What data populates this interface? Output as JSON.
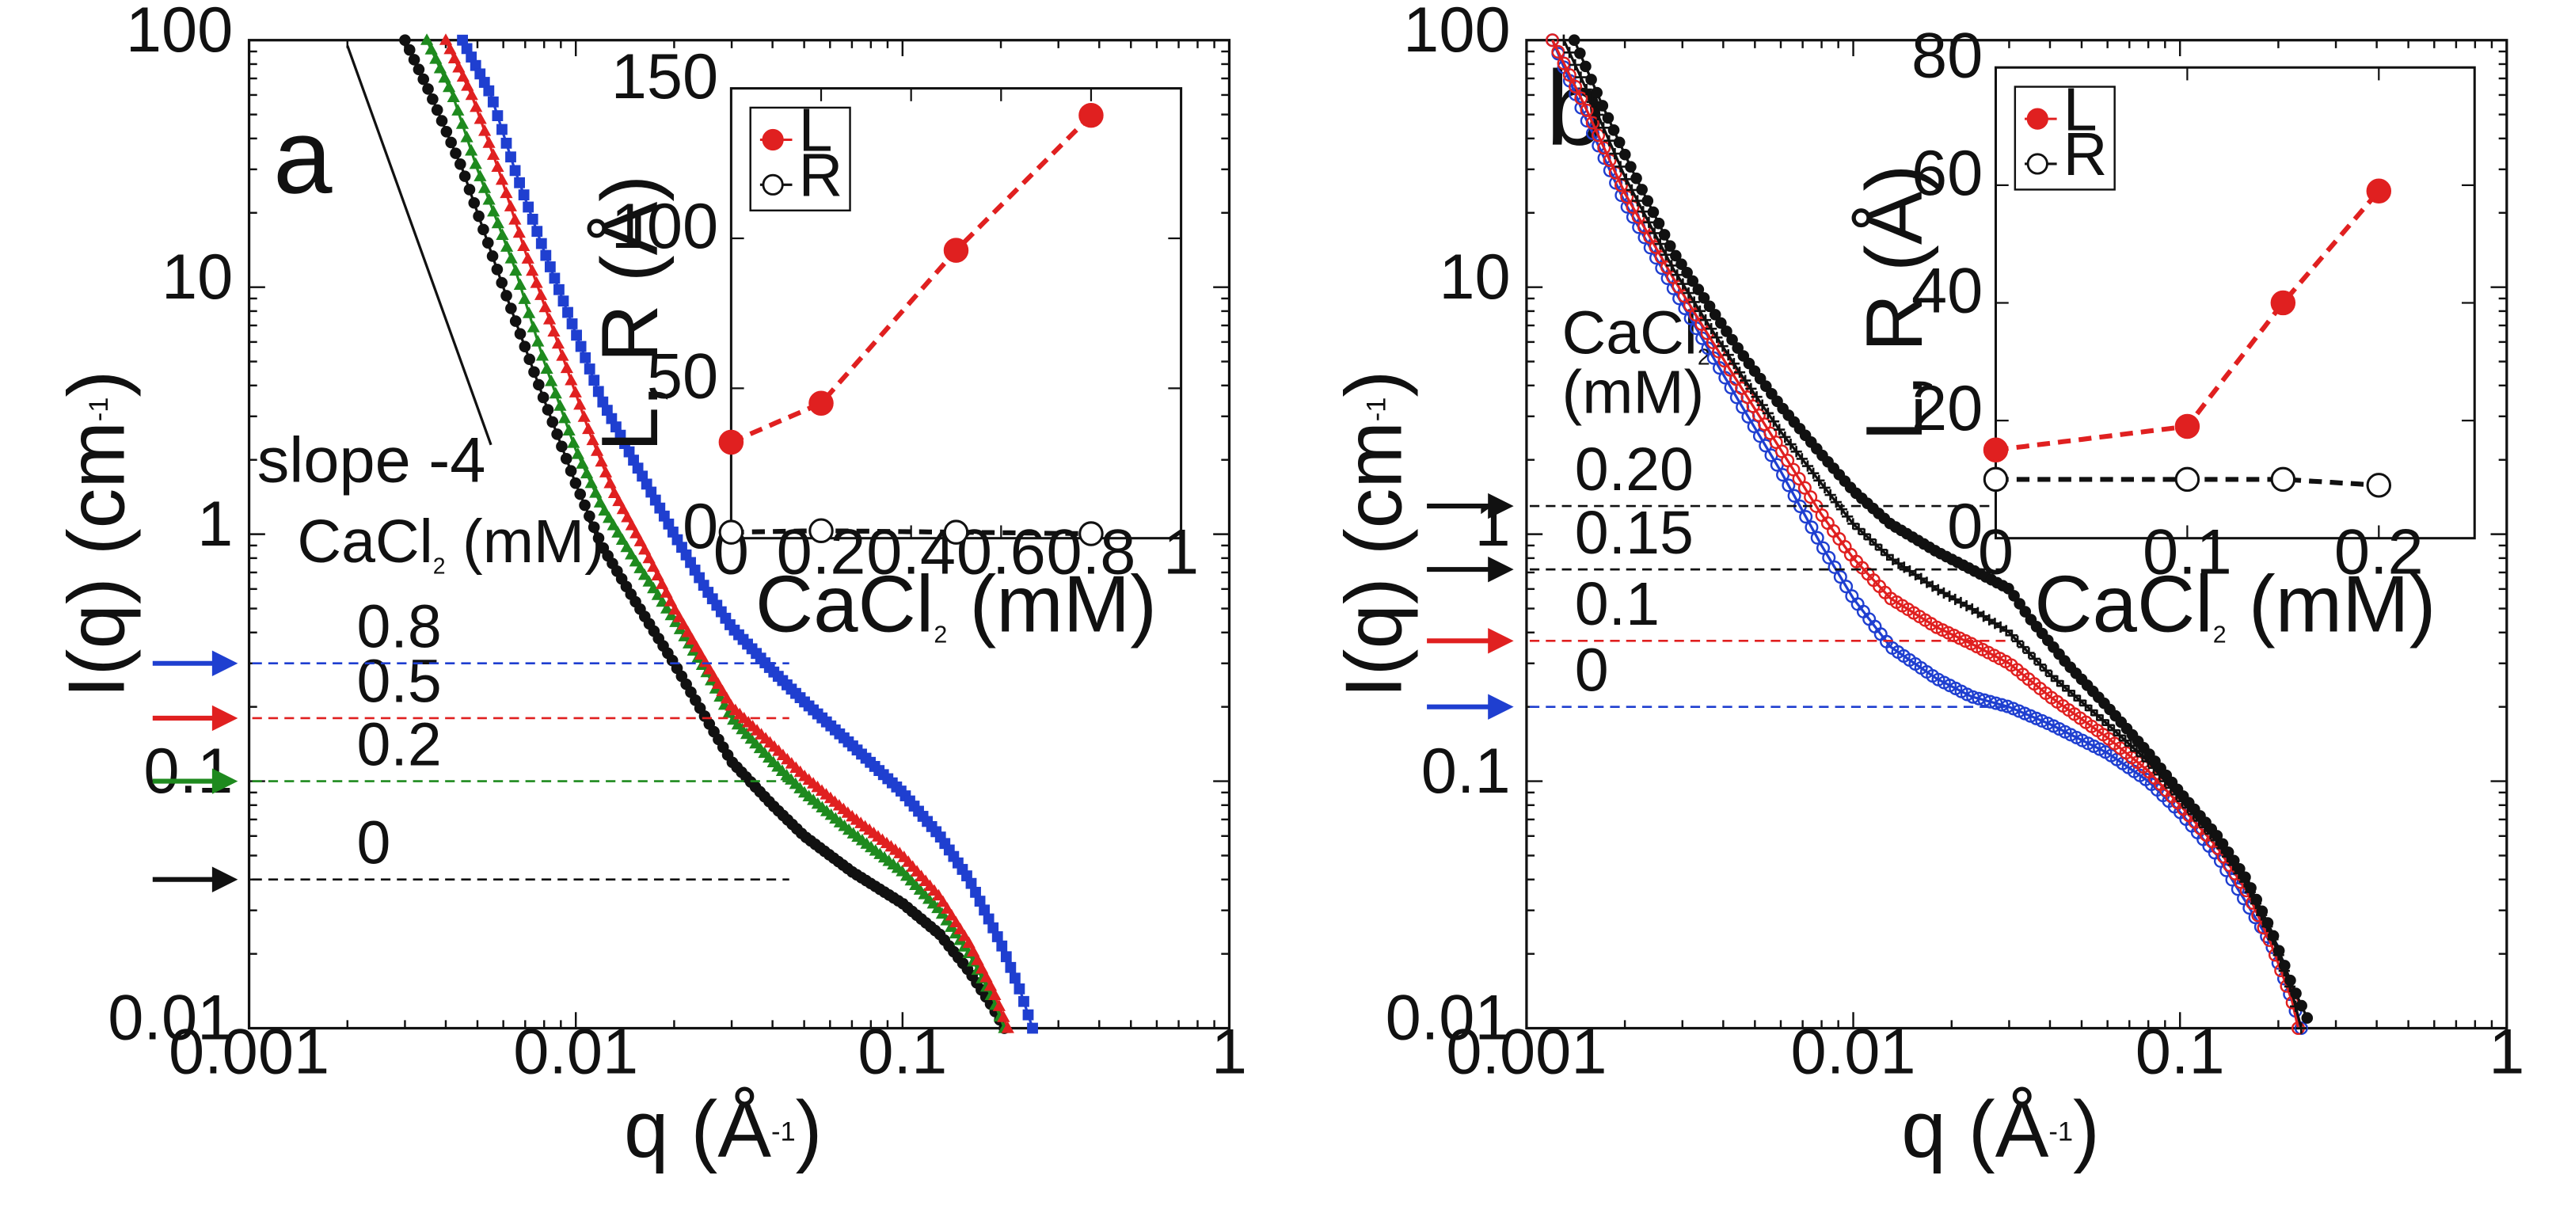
{
  "chart_data": [
    {
      "panel_label": "a",
      "type": "scatter",
      "scale": "log-log",
      "xlabel": "q",
      "xlabel_unit": "(Å",
      "xlabel_sup": "-1",
      "ylabel": "I(q)",
      "ylabel_unit": "(cm",
      "ylabel_sup": "-1",
      "xlim": [
        0.001,
        1
      ],
      "ylim": [
        0.01,
        100
      ],
      "x_ticks": [
        {
          "v": 0.001,
          "label": "0.001"
        },
        {
          "v": 0.01,
          "label": "0.01"
        },
        {
          "v": 0.1,
          "label": "0.1"
        },
        {
          "v": 1,
          "label": "1"
        }
      ],
      "y_ticks": [
        {
          "v": 0.01,
          "label": "0.01"
        },
        {
          "v": 0.1,
          "label": "0.1"
        },
        {
          "v": 1,
          "label": "1"
        },
        {
          "v": 10,
          "label": "10"
        },
        {
          "v": 100,
          "label": "100"
        }
      ],
      "slope_annotation": {
        "text": "slope -4",
        "from": [
          0.002,
          95
        ],
        "to": [
          0.0055,
          2.3
        ]
      },
      "legend_title": "CaCl",
      "legend_title_sub": "2",
      "legend_title_unit": " (mM)",
      "series": [
        {
          "name": "0",
          "color": "#111111",
          "marker": "circle",
          "filled": true,
          "plateau": 0.04,
          "level_label": "0",
          "points": [
            [
              0.003,
              100
            ],
            [
              0.0036,
              60
            ],
            [
              0.0045,
              30
            ],
            [
              0.006,
              10
            ],
            [
              0.008,
              3.5
            ],
            [
              0.01,
              1.6
            ],
            [
              0.012,
              0.9
            ],
            [
              0.015,
              0.55
            ],
            [
              0.02,
              0.3
            ],
            [
              0.025,
              0.18
            ],
            [
              0.03,
              0.12
            ],
            [
              0.04,
              0.08
            ],
            [
              0.05,
              0.06
            ],
            [
              0.07,
              0.043
            ],
            [
              0.1,
              0.032
            ],
            [
              0.13,
              0.024
            ],
            [
              0.16,
              0.017
            ],
            [
              0.19,
              0.012
            ],
            [
              0.205,
              0.01
            ]
          ]
        },
        {
          "name": "0.2",
          "color": "#1e8a1e",
          "marker": "triangle",
          "filled": true,
          "plateau": 0.1,
          "level_label": "0.2",
          "points": [
            [
              0.0035,
              100
            ],
            [
              0.0042,
              60
            ],
            [
              0.005,
              30
            ],
            [
              0.0065,
              12
            ],
            [
              0.008,
              5
            ],
            [
              0.01,
              2.2
            ],
            [
              0.012,
              1.3
            ],
            [
              0.015,
              0.8
            ],
            [
              0.02,
              0.45
            ],
            [
              0.025,
              0.28
            ],
            [
              0.03,
              0.18
            ],
            [
              0.04,
              0.12
            ],
            [
              0.05,
              0.09
            ],
            [
              0.07,
              0.062
            ],
            [
              0.1,
              0.043
            ],
            [
              0.13,
              0.03
            ],
            [
              0.16,
              0.02
            ],
            [
              0.19,
              0.013
            ],
            [
              0.205,
              0.01
            ]
          ]
        },
        {
          "name": "0.5",
          "color": "#e02020",
          "marker": "triangle",
          "filled": true,
          "plateau": 0.18,
          "level_label": "0.5",
          "points": [
            [
              0.004,
              100
            ],
            [
              0.0048,
              60
            ],
            [
              0.0058,
              30
            ],
            [
              0.007,
              14
            ],
            [
              0.009,
              5.5
            ],
            [
              0.011,
              2.6
            ],
            [
              0.013,
              1.5
            ],
            [
              0.016,
              0.9
            ],
            [
              0.02,
              0.5
            ],
            [
              0.025,
              0.3
            ],
            [
              0.03,
              0.2
            ],
            [
              0.04,
              0.14
            ],
            [
              0.05,
              0.105
            ],
            [
              0.07,
              0.072
            ],
            [
              0.1,
              0.05
            ],
            [
              0.13,
              0.034
            ],
            [
              0.16,
              0.022
            ],
            [
              0.19,
              0.014
            ],
            [
              0.21,
              0.01
            ]
          ]
        },
        {
          "name": "0.8",
          "color": "#1f3fd0",
          "marker": "square",
          "filled": true,
          "plateau": 0.3,
          "level_label": "0.8",
          "points": [
            [
              0.0045,
              100
            ],
            [
              0.0055,
              60
            ],
            [
              0.0065,
              30
            ],
            [
              0.008,
              14
            ],
            [
              0.01,
              6.5
            ],
            [
              0.012,
              3.5
            ],
            [
              0.015,
              2
            ],
            [
              0.02,
              1
            ],
            [
              0.025,
              0.6
            ],
            [
              0.03,
              0.42
            ],
            [
              0.04,
              0.28
            ],
            [
              0.05,
              0.21
            ],
            [
              0.07,
              0.14
            ],
            [
              0.1,
              0.09
            ],
            [
              0.13,
              0.06
            ],
            [
              0.16,
              0.04
            ],
            [
              0.2,
              0.022
            ],
            [
              0.23,
              0.014
            ],
            [
              0.25,
              0.01
            ]
          ]
        }
      ],
      "inset": {
        "type": "scatter",
        "xlabel": "CaCl",
        "xlabel_sub": "2",
        "xlabel_unit": " (mM)",
        "ylabel": "L, R (Å)",
        "xlim": [
          0,
          1
        ],
        "ylim": [
          0,
          150
        ],
        "x_ticks": [
          {
            "v": 0,
            "label": "0"
          },
          {
            "v": 0.2,
            "label": "0.2"
          },
          {
            "v": 0.4,
            "label": "0.4"
          },
          {
            "v": 0.6,
            "label": "0.6"
          },
          {
            "v": 0.8,
            "label": "0.8"
          },
          {
            "v": 1,
            "label": "1"
          }
        ],
        "y_ticks": [
          {
            "v": 0,
            "label": "0"
          },
          {
            "v": 50,
            "label": "50"
          },
          {
            "v": 100,
            "label": "100"
          },
          {
            "v": 150,
            "label": "150"
          }
        ],
        "series": [
          {
            "name": "L",
            "color": "#e02020",
            "filled": true,
            "x": [
              0,
              0.2,
              0.5,
              0.8
            ],
            "y": [
              32,
              45,
              96,
              141
            ]
          },
          {
            "name": "R",
            "color": "#111111",
            "filled": false,
            "x": [
              0,
              0.2,
              0.5,
              0.8
            ],
            "y": [
              2,
              2.5,
              2,
              1.5
            ]
          }
        ]
      }
    },
    {
      "panel_label": "b",
      "type": "scatter",
      "scale": "log-log",
      "xlabel": "q",
      "xlabel_unit": "(Å",
      "xlabel_sup": "-1",
      "ylabel": "I(q)",
      "ylabel_unit": "(cm",
      "ylabel_sup": "-1",
      "xlim": [
        0.001,
        1
      ],
      "ylim": [
        0.01,
        100
      ],
      "x_ticks": [
        {
          "v": 0.001,
          "label": "0.001"
        },
        {
          "v": 0.01,
          "label": "0.01"
        },
        {
          "v": 0.1,
          "label": "0.1"
        },
        {
          "v": 1,
          "label": "1"
        }
      ],
      "y_ticks": [
        {
          "v": 0.01,
          "label": "0.01"
        },
        {
          "v": 0.1,
          "label": "0.1"
        },
        {
          "v": 1,
          "label": "1"
        },
        {
          "v": 10,
          "label": "10"
        },
        {
          "v": 100,
          "label": "100"
        }
      ],
      "legend_title": "CaCl",
      "legend_title_sub": "2",
      "legend_title_unit": "(mM)",
      "series": [
        {
          "name": "0",
          "color": "#1f3fd0",
          "marker": "open-circle",
          "filled": false,
          "plateau": 0.2,
          "level_label": "0",
          "points": [
            [
              0.0012,
              100
            ],
            [
              0.0015,
              50
            ],
            [
              0.002,
              22
            ],
            [
              0.0028,
              10
            ],
            [
              0.0035,
              6
            ],
            [
              0.0045,
              3.4
            ],
            [
              0.006,
              1.8
            ],
            [
              0.008,
              0.9
            ],
            [
              0.01,
              0.55
            ],
            [
              0.013,
              0.35
            ],
            [
              0.018,
              0.26
            ],
            [
              0.023,
              0.22
            ],
            [
              0.03,
              0.2
            ],
            [
              0.04,
              0.17
            ],
            [
              0.06,
              0.13
            ],
            [
              0.08,
              0.1
            ],
            [
              0.1,
              0.075
            ],
            [
              0.13,
              0.05
            ],
            [
              0.16,
              0.032
            ],
            [
              0.19,
              0.022
            ],
            [
              0.22,
              0.013
            ],
            [
              0.235,
              0.01
            ]
          ]
        },
        {
          "name": "0.1",
          "color": "#e02020",
          "marker": "open-circle",
          "filled": false,
          "plateau": 0.37,
          "level_label": "0.1",
          "points": [
            [
              0.0012,
              100
            ],
            [
              0.0015,
              55
            ],
            [
              0.002,
              24
            ],
            [
              0.0028,
              11
            ],
            [
              0.0035,
              6.8
            ],
            [
              0.0045,
              4
            ],
            [
              0.006,
              2.2
            ],
            [
              0.008,
              1.2
            ],
            [
              0.01,
              0.8
            ],
            [
              0.013,
              0.55
            ],
            [
              0.018,
              0.42
            ],
            [
              0.023,
              0.36
            ],
            [
              0.03,
              0.3
            ],
            [
              0.04,
              0.22
            ],
            [
              0.06,
              0.15
            ],
            [
              0.08,
              0.11
            ],
            [
              0.1,
              0.08
            ],
            [
              0.13,
              0.054
            ],
            [
              0.16,
              0.036
            ],
            [
              0.19,
              0.022
            ],
            [
              0.22,
              0.013
            ],
            [
              0.23,
              0.01
            ]
          ]
        },
        {
          "name": "0.15",
          "color": "#111111",
          "marker": "cross",
          "filled": false,
          "plateau": 0.72,
          "level_label": "0.15",
          "points": [
            [
              0.0013,
              100
            ],
            [
              0.0016,
              55
            ],
            [
              0.002,
              28
            ],
            [
              0.0028,
              12
            ],
            [
              0.0035,
              7.5
            ],
            [
              0.0045,
              4.5
            ],
            [
              0.006,
              2.6
            ],
            [
              0.008,
              1.6
            ],
            [
              0.01,
              1.1
            ],
            [
              0.013,
              0.8
            ],
            [
              0.018,
              0.6
            ],
            [
              0.023,
              0.5
            ],
            [
              0.03,
              0.4
            ],
            [
              0.04,
              0.27
            ],
            [
              0.06,
              0.17
            ],
            [
              0.08,
              0.12
            ],
            [
              0.1,
              0.085
            ],
            [
              0.13,
              0.057
            ],
            [
              0.16,
              0.038
            ],
            [
              0.19,
              0.024
            ],
            [
              0.22,
              0.014
            ],
            [
              0.235,
              0.01
            ]
          ]
        },
        {
          "name": "0.20",
          "color": "#111111",
          "marker": "circle",
          "filled": true,
          "plateau": 1.3,
          "level_label": "0.20",
          "points": [
            [
              0.0014,
              100
            ],
            [
              0.0017,
              55
            ],
            [
              0.0021,
              30
            ],
            [
              0.0028,
              14
            ],
            [
              0.0035,
              9
            ],
            [
              0.0045,
              5.5
            ],
            [
              0.006,
              3.3
            ],
            [
              0.008,
              2.1
            ],
            [
              0.01,
              1.5
            ],
            [
              0.013,
              1.1
            ],
            [
              0.018,
              0.85
            ],
            [
              0.023,
              0.72
            ],
            [
              0.03,
              0.6
            ],
            [
              0.035,
              0.45
            ],
            [
              0.045,
              0.3
            ],
            [
              0.06,
              0.2
            ],
            [
              0.08,
              0.13
            ],
            [
              0.1,
              0.09
            ],
            [
              0.13,
              0.06
            ],
            [
              0.16,
              0.04
            ],
            [
              0.19,
              0.025
            ],
            [
              0.22,
              0.015
            ],
            [
              0.245,
              0.011
            ]
          ]
        }
      ],
      "inset": {
        "type": "scatter",
        "xlabel": "CaCl",
        "xlabel_sub": "2",
        "xlabel_unit": " (mM)",
        "ylabel": "L, R (Å)",
        "xlim": [
          0,
          0.25
        ],
        "ylim": [
          0,
          80
        ],
        "x_ticks": [
          {
            "v": 0,
            "label": "0"
          },
          {
            "v": 0.1,
            "label": "0.1"
          },
          {
            "v": 0.2,
            "label": "0.2"
          }
        ],
        "y_ticks": [
          {
            "v": 0,
            "label": "0"
          },
          {
            "v": 20,
            "label": "20"
          },
          {
            "v": 40,
            "label": "40"
          },
          {
            "v": 60,
            "label": "60"
          },
          {
            "v": 80,
            "label": "80"
          }
        ],
        "series": [
          {
            "name": "L",
            "color": "#e02020",
            "filled": true,
            "x": [
              0,
              0.1,
              0.15,
              0.2
            ],
            "y": [
              15,
              19,
              40,
              59
            ]
          },
          {
            "name": "R",
            "color": "#111111",
            "filled": false,
            "x": [
              0,
              0.1,
              0.15,
              0.2
            ],
            "y": [
              10,
              10,
              10,
              9
            ]
          }
        ]
      }
    }
  ]
}
